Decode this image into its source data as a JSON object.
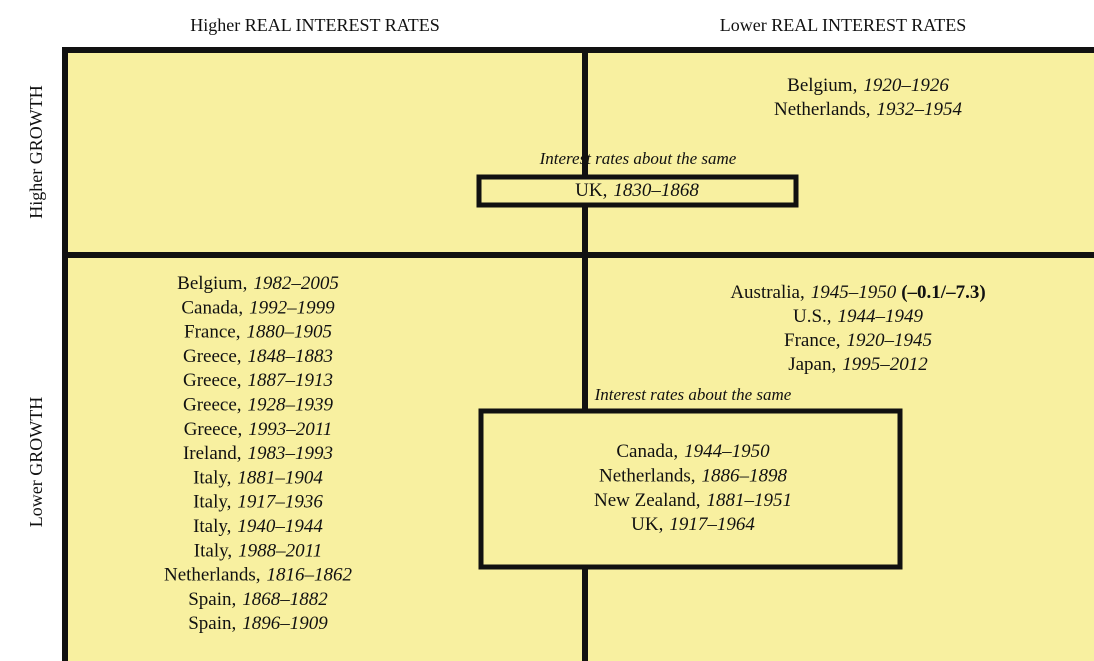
{
  "columns": [
    "Higher REAL INTEREST RATES",
    "Lower REAL INTEREST RATES"
  ],
  "rows": [
    "Higher GROWTH",
    "Lower GROWTH"
  ],
  "quadrants": {
    "top_right": [
      {
        "country": "Belgium,",
        "years": "1920–1926"
      },
      {
        "country": "Netherlands,",
        "years": "1932–1954"
      }
    ],
    "top_same": {
      "label": "Interest rates about the same",
      "entries": [
        {
          "country": "UK,",
          "years": "1830–1868"
        }
      ]
    },
    "bottom_left": [
      {
        "country": "Belgium,",
        "years": "1982–2005"
      },
      {
        "country": "Canada,",
        "years": "1992–1999"
      },
      {
        "country": "France,",
        "years": "1880–1905"
      },
      {
        "country": "Greece,",
        "years": "1848–1883"
      },
      {
        "country": "Greece,",
        "years": "1887–1913"
      },
      {
        "country": "Greece,",
        "years": "1928–1939"
      },
      {
        "country": "Greece,",
        "years": "1993–2011"
      },
      {
        "country": "Ireland,",
        "years": "1983–1993"
      },
      {
        "country": "Italy,",
        "years": "1881–1904"
      },
      {
        "country": "Italy,",
        "years": "1917–1936"
      },
      {
        "country": "Italy,",
        "years": "1940–1944"
      },
      {
        "country": "Italy,",
        "years": "1988–2011"
      },
      {
        "country": "Netherlands,",
        "years": "1816–1862"
      },
      {
        "country": "Spain,",
        "years": "1868–1882"
      },
      {
        "country": "Spain,",
        "years": "1896–1909"
      }
    ],
    "bottom_right": [
      {
        "country": "Australia,",
        "years": "1945–1950",
        "note": "(–0.1/–7.3)"
      },
      {
        "country": "U.S.,",
        "years": "1944–1949"
      },
      {
        "country": "France,",
        "years": "1920–1945"
      },
      {
        "country": "Japan,",
        "years": "1995–2012"
      }
    ],
    "bottom_same": {
      "label": "Interest rates about the same",
      "entries": [
        {
          "country": "Canada,",
          "years": "1944–1950"
        },
        {
          "country": "Netherlands,",
          "years": "1886–1898"
        },
        {
          "country": "New Zealand,",
          "years": "1881–1951"
        },
        {
          "country": "UK,",
          "years": "1917–1964"
        }
      ]
    }
  }
}
